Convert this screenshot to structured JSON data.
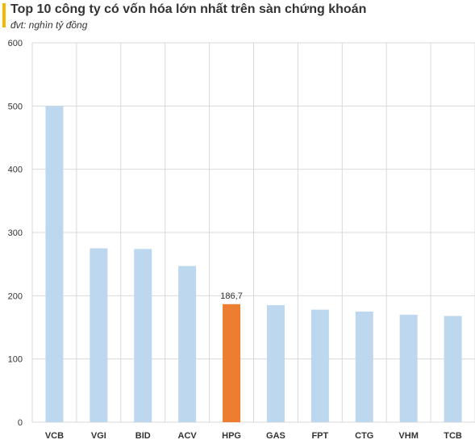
{
  "header": {
    "title": "Top 10 công ty có vốn hóa lớn nhất trên sàn chứng khoán",
    "subtitle": "đvt: nghìn tỷ đồng",
    "accent_color": "#f5b800"
  },
  "chart_data": {
    "type": "bar",
    "title": "Top 10 công ty có vốn hóa lớn nhất trên sàn chứng khoán",
    "subtitle": "đvt: nghìn tỷ đồng",
    "xlabel": "",
    "ylabel": "",
    "categories": [
      "VCB",
      "VGI",
      "BID",
      "ACV",
      "HPG",
      "GAS",
      "FPT",
      "CTG",
      "VHM",
      "TCB"
    ],
    "values": [
      500,
      275,
      274,
      247,
      186.7,
      185,
      178,
      175,
      170,
      168
    ],
    "ylim": [
      0,
      600
    ],
    "yticks": [
      "0",
      "100",
      "200",
      "300",
      "400",
      "500",
      "600"
    ],
    "grid": true,
    "legend": "none",
    "data_labels": [
      {
        "category": "HPG",
        "text": "186,7"
      }
    ],
    "highlight_category": "HPG",
    "bar_color": "#bdd7ee",
    "highlight_color": "#ed7d31",
    "grid_color": "#d9d9d9"
  }
}
